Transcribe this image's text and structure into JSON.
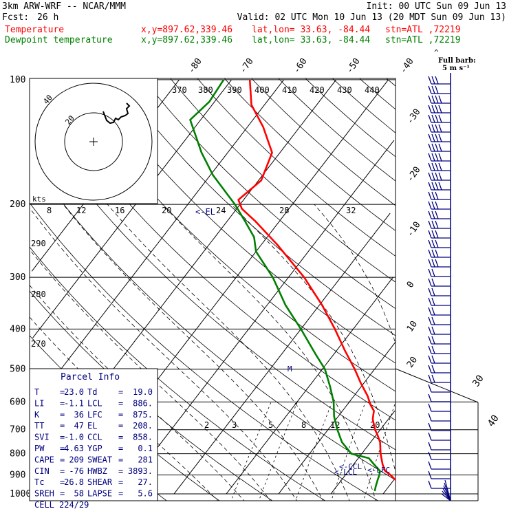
{
  "header": {
    "model": "3km ARW-WRF -- NCAR/MMM",
    "init": "Init: 00 UTC Sun 09 Jun 13",
    "fcst_label": "Fcst:",
    "fcst_value": "26 h",
    "valid": "Valid: 02 UTC Mon 10 Jun 13 (20 MDT Sun 09 Jun 13)",
    "lines": [
      {
        "name": "Temperature",
        "xy": "x,y=897.62,339.46",
        "latlon": "lat,lon= 33.63, -84.44",
        "stn": "stn=ATL ,72219",
        "color": "#ff0000"
      },
      {
        "name": "Dewpoint temperature",
        "xy": "x,y=897.62,339.46",
        "latlon": "lat,lon= 33.63, -84.44",
        "stn": "stn=ATL ,72219",
        "color": "#008000"
      }
    ],
    "barb_legend": [
      "Full barb:",
      "5 m s⁻¹"
    ]
  },
  "colors": {
    "temperature": "#ff0000",
    "dewpoint": "#008000",
    "hodograph": "#000000",
    "text_panel": "#000080",
    "barbs": "#000080",
    "grid": "#000000"
  },
  "parcel_info": {
    "title": "Parcel Info",
    "rows": [
      [
        "T",
        "23.0",
        "Td",
        "19.0"
      ],
      [
        "LI",
        "-1.1",
        "LCL",
        "886."
      ],
      [
        "K",
        "36",
        "LFC",
        "875."
      ],
      [
        "TT",
        "47",
        "EL",
        "208."
      ],
      [
        "SVI",
        "-1.0",
        "CCL",
        "858."
      ],
      [
        "PW",
        "4.63",
        "YGP",
        "0.1"
      ],
      [
        "CAPE",
        "209",
        "SWEAT",
        "281"
      ],
      [
        "CIN",
        "-76",
        "HWBZ",
        "3893."
      ],
      [
        "Tc",
        "26.8",
        "SHEAR",
        "27."
      ],
      [
        "SREH",
        "58",
        "LAPSE",
        "5.6"
      ],
      [
        "CELL",
        "224/29",
        "",
        ""
      ]
    ]
  },
  "hodograph": {
    "units": "kts",
    "ring_labels": [
      "20",
      "40"
    ]
  },
  "level_markers": [
    "<-EL",
    "<-CCL",
    "<-LFC",
    "<-LCL",
    "M"
  ],
  "chart_data": {
    "type": "line",
    "title": "",
    "y_axis": {
      "label": "",
      "scale": "log-pressure",
      "ylim": [
        1000,
        100
      ],
      "unit": "hPa",
      "ticks": [
        1000,
        900,
        800,
        700,
        600,
        500,
        400,
        300,
        200,
        100
      ]
    },
    "temperature_ticks": [
      -80,
      -70,
      -60,
      -50,
      -40,
      -30,
      -20,
      -10,
      0,
      10,
      20,
      30,
      40
    ],
    "theta_labels": {
      "top": [
        370,
        380,
        390,
        400,
        410,
        420,
        430,
        440
      ],
      "left": [
        290,
        280,
        270
      ]
    },
    "theta_e_labels": [
      8,
      12,
      16,
      20,
      24,
      28,
      32
    ],
    "mixing_ratio_labels": [
      2,
      3,
      5,
      8,
      12,
      20
    ],
    "series": [
      {
        "name": "Temperature",
        "color": "#ff0000",
        "points": [
          [
            985,
            24.0
          ],
          [
            965,
            22.5
          ],
          [
            930,
            20.6
          ],
          [
            900,
            18.6
          ],
          [
            880,
            17.0
          ],
          [
            850,
            15.6
          ],
          [
            800,
            13.6
          ],
          [
            750,
            11.8
          ],
          [
            720,
            10.2
          ],
          [
            700,
            9.0
          ],
          [
            660,
            7.0
          ],
          [
            630,
            6.0
          ],
          [
            610,
            4.5
          ],
          [
            580,
            2.6
          ],
          [
            540,
            -0.6
          ],
          [
            500,
            -3.8
          ],
          [
            450,
            -8.5
          ],
          [
            400,
            -13.5
          ],
          [
            350,
            -19.5
          ],
          [
            300,
            -27.0
          ],
          [
            250,
            -37.0
          ],
          [
            220,
            -44.5
          ],
          [
            205,
            -49.0
          ],
          [
            195,
            -51.0
          ],
          [
            175,
            -49.5
          ],
          [
            150,
            -51.5
          ],
          [
            130,
            -57.0
          ],
          [
            115,
            -62.5
          ],
          [
            100,
            -66.5
          ]
        ]
      },
      {
        "name": "Dewpoint temperature",
        "color": "#008000",
        "points": [
          [
            985,
            18.0
          ],
          [
            960,
            17.5
          ],
          [
            920,
            16.8
          ],
          [
            900,
            16.5
          ],
          [
            880,
            16.0
          ],
          [
            850,
            14.0
          ],
          [
            820,
            12.0
          ],
          [
            800,
            8.0
          ],
          [
            750,
            4.5
          ],
          [
            700,
            1.8
          ],
          [
            650,
            -0.8
          ],
          [
            600,
            -3.0
          ],
          [
            550,
            -6.0
          ],
          [
            500,
            -9.5
          ],
          [
            460,
            -13.5
          ],
          [
            400,
            -20.0
          ],
          [
            350,
            -26.5
          ],
          [
            300,
            -33.0
          ],
          [
            260,
            -40.0
          ],
          [
            240,
            -42.5
          ],
          [
            220,
            -46.5
          ],
          [
            200,
            -51.0
          ],
          [
            170,
            -59.5
          ],
          [
            150,
            -65.0
          ],
          [
            125,
            -72.0
          ],
          [
            113,
            -71.0
          ],
          [
            100,
            -71.5
          ]
        ]
      }
    ],
    "grid": true,
    "legend": "top-left"
  }
}
